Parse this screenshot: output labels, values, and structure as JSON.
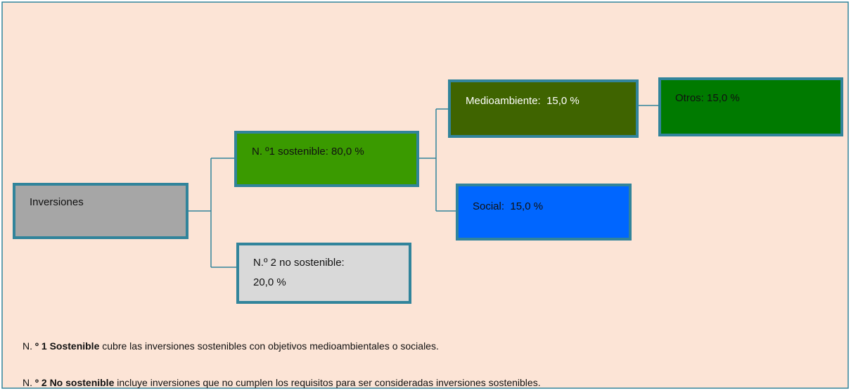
{
  "nodes": [
    {
      "lines": [
        "Inversiones"
      ]
    },
    {
      "lines": [
        "N. º1 sostenible: 80,0 %"
      ]
    },
    {
      "lines": [
        "N.º 2 no sostenible:",
        "20,0 %"
      ]
    },
    {
      "lines": [
        "Medioambiente:  15,0 %"
      ]
    },
    {
      "lines": [
        "Otros: 15,0 %"
      ]
    },
    {
      "lines": [
        "Social:  15,0 %"
      ]
    }
  ],
  "notes": [
    {
      "parts": [
        "N. ",
        "º 1 Sostenible",
        " cubre las inversiones sostenibles con objetivos medioambientales o sociales."
      ]
    },
    {
      "parts": [
        "N. ",
        "º 2 No sostenible",
        " incluye inversiones que no cumplen los requisitos para ser consideradas inversiones sostenibles."
      ]
    }
  ]
}
